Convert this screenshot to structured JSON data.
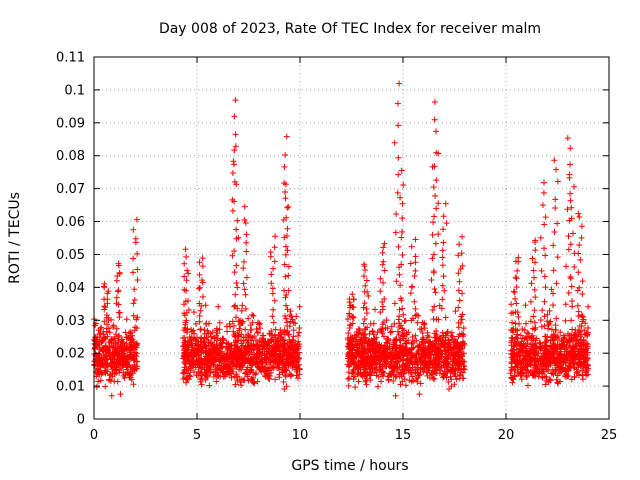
{
  "chart_data": {
    "type": "scatter",
    "title": "Day 008 of 2023, Rate Of TEC Index for receiver malm",
    "xlabel": "GPS time / hours",
    "ylabel": "ROTI / TECUs",
    "xlim": [
      0,
      25
    ],
    "ylim": [
      0,
      0.11
    ],
    "xticks": [
      "0",
      "5",
      "10",
      "15",
      "20",
      "25"
    ],
    "yticks": [
      "0",
      "0.01",
      "0.02",
      "0.03",
      "0.04",
      "0.05",
      "0.06",
      "0.07",
      "0.08",
      "0.09",
      "0.1",
      "0.11"
    ],
    "grid": true,
    "marker": "+",
    "color": "#ff0000",
    "segments": [
      {
        "x_start": 0.0,
        "x_end": 2.1
      },
      {
        "x_start": 4.3,
        "x_end": 10.0
      },
      {
        "x_start": 12.3,
        "x_end": 18.0
      },
      {
        "x_start": 20.2,
        "x_end": 24.0
      }
    ],
    "peaks": [
      {
        "x": 0.6,
        "y": 0.041
      },
      {
        "x": 1.2,
        "y": 0.048
      },
      {
        "x": 2.0,
        "y": 0.06
      },
      {
        "x": 4.5,
        "y": 0.051
      },
      {
        "x": 5.2,
        "y": 0.049
      },
      {
        "x": 6.9,
        "y": 0.097
      },
      {
        "x": 6.8,
        "y": 0.083
      },
      {
        "x": 7.3,
        "y": 0.064
      },
      {
        "x": 8.7,
        "y": 0.055
      },
      {
        "x": 9.3,
        "y": 0.085
      },
      {
        "x": 9.4,
        "y": 0.071
      },
      {
        "x": 12.5,
        "y": 0.038
      },
      {
        "x": 13.2,
        "y": 0.047
      },
      {
        "x": 14.0,
        "y": 0.054
      },
      {
        "x": 14.7,
        "y": 0.101
      },
      {
        "x": 14.9,
        "y": 0.075
      },
      {
        "x": 15.5,
        "y": 0.054
      },
      {
        "x": 16.6,
        "y": 0.097
      },
      {
        "x": 16.5,
        "y": 0.08
      },
      {
        "x": 17.0,
        "y": 0.065
      },
      {
        "x": 17.8,
        "y": 0.055
      },
      {
        "x": 20.5,
        "y": 0.05
      },
      {
        "x": 21.3,
        "y": 0.055
      },
      {
        "x": 21.8,
        "y": 0.071
      },
      {
        "x": 22.4,
        "y": 0.079
      },
      {
        "x": 23.0,
        "y": 0.086
      },
      {
        "x": 23.2,
        "y": 0.074
      },
      {
        "x": 23.6,
        "y": 0.063
      }
    ]
  }
}
